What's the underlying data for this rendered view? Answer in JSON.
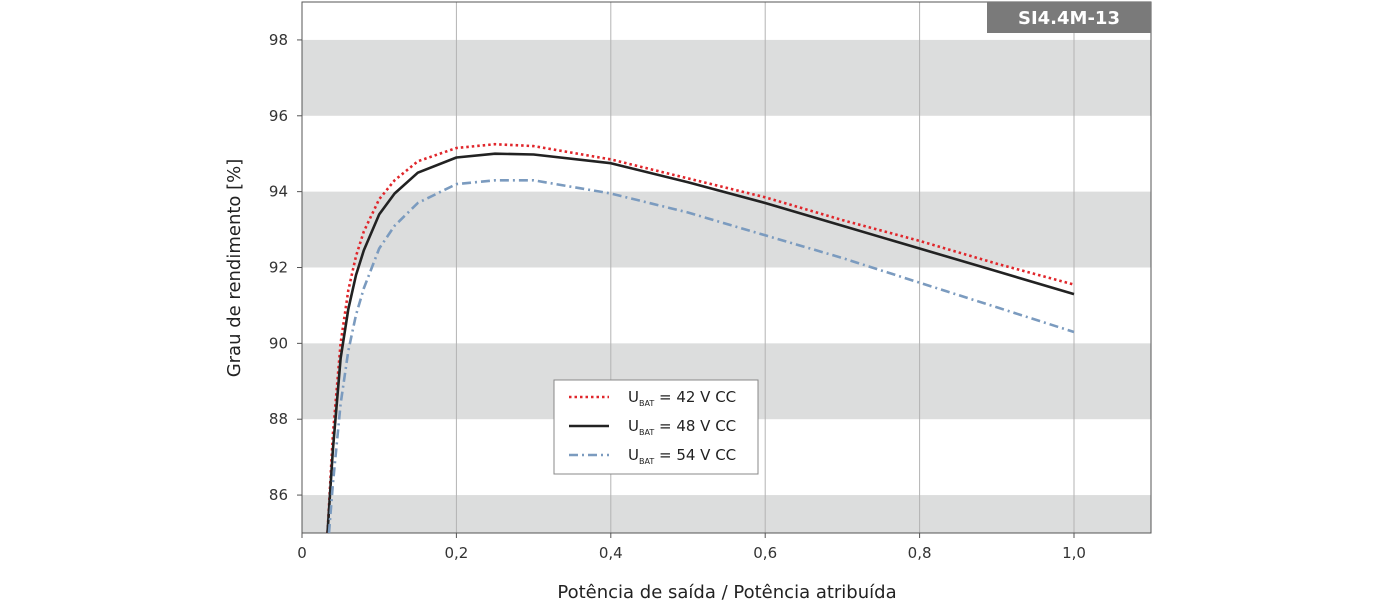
{
  "chart_data": {
    "type": "line",
    "model_label": "SI4.4M-13",
    "xlabel": "Potência de saída / Potência atribuída",
    "ylabel": "Grau de rendimento [%]",
    "xlim": [
      0,
      1.1
    ],
    "ylim": [
      85,
      99
    ],
    "x_ticks": [
      {
        "value": 0,
        "label": "0"
      },
      {
        "value": 0.2,
        "label": "0,2"
      },
      {
        "value": 0.4,
        "label": "0,4"
      },
      {
        "value": 0.6,
        "label": "0,6"
      },
      {
        "value": 0.8,
        "label": "0,8"
      },
      {
        "value": 1.0,
        "label": "1,0"
      }
    ],
    "y_ticks": [
      {
        "value": 86,
        "label": "86"
      },
      {
        "value": 88,
        "label": "88"
      },
      {
        "value": 90,
        "label": "90"
      },
      {
        "value": 92,
        "label": "92"
      },
      {
        "value": 94,
        "label": "94"
      },
      {
        "value": 96,
        "label": "96"
      },
      {
        "value": 98,
        "label": "98"
      }
    ],
    "grid": "vertical",
    "background_bands": [
      [
        86,
        85
      ],
      [
        88,
        90
      ],
      [
        92,
        94
      ],
      [
        96,
        98
      ]
    ],
    "legend_position": "center-bottom",
    "series": [
      {
        "name": "42 V CC",
        "legend_prefix": "U",
        "legend_sub": "BAT",
        "legend_suffix": " = 42 V CC",
        "color": "#e0262b",
        "style": "dotted",
        "x": [
          0.033,
          0.04,
          0.05,
          0.06,
          0.07,
          0.08,
          0.1,
          0.12,
          0.15,
          0.2,
          0.25,
          0.3,
          0.4,
          0.5,
          0.6,
          0.7,
          0.8,
          0.9,
          1.0
        ],
        "values": [
          85.0,
          87.6,
          90.0,
          91.4,
          92.3,
          92.95,
          93.8,
          94.3,
          94.8,
          95.15,
          95.25,
          95.2,
          94.85,
          94.35,
          93.85,
          93.25,
          92.7,
          92.1,
          91.55
        ]
      },
      {
        "name": "48 V CC",
        "legend_prefix": "U",
        "legend_sub": "BAT",
        "legend_suffix": " = 48 V CC",
        "color": "#222222",
        "style": "solid",
        "x": [
          0.033,
          0.04,
          0.05,
          0.06,
          0.07,
          0.08,
          0.1,
          0.12,
          0.15,
          0.2,
          0.25,
          0.3,
          0.4,
          0.5,
          0.6,
          0.7,
          0.8,
          0.9,
          1.0
        ],
        "values": [
          85.0,
          87.2,
          89.6,
          90.9,
          91.8,
          92.45,
          93.4,
          93.95,
          94.5,
          94.9,
          95.0,
          94.98,
          94.75,
          94.25,
          93.7,
          93.1,
          92.5,
          91.9,
          91.3
        ]
      },
      {
        "name": "54 V CC",
        "legend_prefix": "U",
        "legend_sub": "BAT",
        "legend_suffix": " = 54 V CC",
        "color": "#7b9bbf",
        "style": "dashdot",
        "x": [
          0.035,
          0.04,
          0.05,
          0.06,
          0.07,
          0.08,
          0.1,
          0.12,
          0.15,
          0.2,
          0.25,
          0.3,
          0.4,
          0.5,
          0.6,
          0.7,
          0.8,
          0.9,
          1.0
        ],
        "values": [
          85.0,
          86.3,
          88.4,
          89.8,
          90.75,
          91.45,
          92.5,
          93.1,
          93.7,
          94.2,
          94.3,
          94.3,
          93.95,
          93.45,
          92.85,
          92.25,
          91.6,
          90.95,
          90.3
        ]
      }
    ]
  }
}
